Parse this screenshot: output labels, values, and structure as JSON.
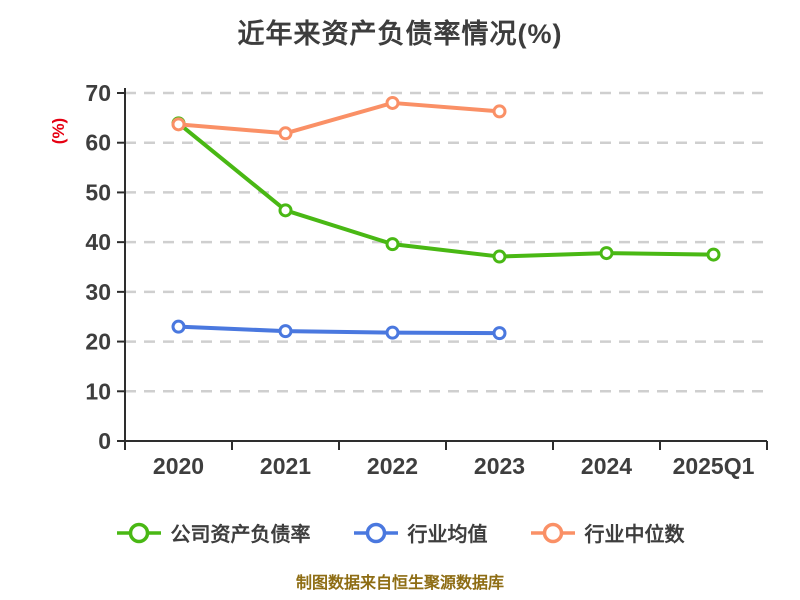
{
  "title": "近年来资产负债率情况(%)",
  "footer": "制图数据来自恒生聚源数据库",
  "colors": {
    "background": "#ffffff",
    "title_text": "#3d3d3d",
    "axis_line": "#2e2e2e",
    "tick_label": "#3e3e3e",
    "gridline": "#cfcfcf",
    "ylabel_red": "#e60012",
    "footer_gold": "#8e6d14",
    "series_company": "#49b814",
    "series_industry_avg": "#4a78df",
    "series_industry_median": "#fa9066"
  },
  "chart_data": {
    "type": "line",
    "title": "近年来资产负债率情况(%)",
    "ylabel": "(%)",
    "xlabel": "",
    "categories": [
      "2020",
      "2021",
      "2022",
      "2023",
      "2024",
      "2025Q1"
    ],
    "series": [
      {
        "name": "公司资产负债率",
        "color": "#49b814",
        "values": [
          63.9,
          46.4,
          39.6,
          37.1,
          37.8,
          37.5
        ]
      },
      {
        "name": "行业均值",
        "color": "#4a78df",
        "values": [
          23.0,
          22.1,
          21.8,
          21.7,
          null,
          null
        ]
      },
      {
        "name": "行业中位数",
        "color": "#fa9066",
        "values": [
          63.7,
          61.9,
          68.0,
          66.3,
          null,
          null
        ]
      }
    ],
    "ylim": [
      0,
      70
    ],
    "ytick_step": 10,
    "grid": "horizontal-dashed",
    "legend_position": "bottom",
    "marker": "circle-white-fill"
  }
}
